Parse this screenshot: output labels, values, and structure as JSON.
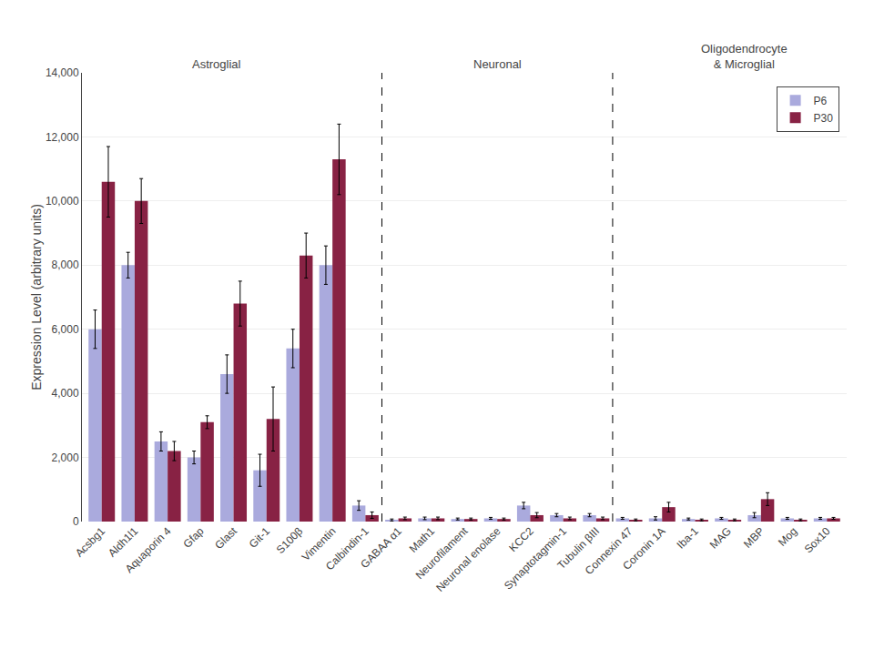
{
  "chart_data": {
    "type": "bar",
    "categories": [
      "Acsbg1",
      "Aldh1l1",
      "Aquaporin 4",
      "Gfap",
      "Glast",
      "Git-1",
      "S100β",
      "Vimentin",
      "Calbindin-1",
      "GABAA α1",
      "Math1",
      "Neurofilament",
      "Neuronal enolase",
      "KCC2",
      "Synaptotagmin-1",
      "Tubulin βIII",
      "Connexin 47",
      "Coronin 1A",
      "Iba-1",
      "MAG",
      "MBP",
      "Mog",
      "Sox10"
    ],
    "series": [
      {
        "name": "P6",
        "color": "#aaaadd",
        "values": [
          6000,
          8000,
          2500,
          2000,
          4600,
          1600,
          5400,
          8000,
          500,
          50,
          100,
          80,
          100,
          500,
          200,
          200,
          100,
          100,
          80,
          100,
          200,
          100,
          100
        ],
        "errors": [
          600,
          400,
          300,
          200,
          600,
          500,
          600,
          600,
          150,
          30,
          40,
          30,
          30,
          100,
          50,
          50,
          30,
          50,
          30,
          30,
          80,
          30,
          30
        ]
      },
      {
        "name": "P30",
        "color": "#882244",
        "values": [
          10600,
          10000,
          2200,
          3100,
          6800,
          3200,
          8300,
          11300,
          200,
          100,
          100,
          80,
          80,
          200,
          100,
          100,
          50,
          450,
          50,
          50,
          700,
          50,
          100
        ],
        "errors": [
          1100,
          700,
          300,
          200,
          700,
          1000,
          700,
          1100,
          100,
          40,
          40,
          30,
          30,
          80,
          40,
          40,
          30,
          150,
          30,
          30,
          200,
          30,
          30
        ]
      }
    ],
    "ylabel": "Expression Level (arbitrary units)",
    "ylim": [
      0,
      14000
    ],
    "yticks": [
      0,
      {
        "value": 2000,
        "label": "2,000"
      },
      {
        "value": 4000,
        "label": "4,000"
      },
      {
        "value": 6000,
        "label": "6,000"
      },
      {
        "value": 8000,
        "label": "8,000"
      },
      {
        "value": 10000,
        "label": "10,000"
      },
      {
        "value": 12000,
        "label": "12,000"
      },
      {
        "value": 14000,
        "label": "14,000"
      }
    ],
    "annotations": [
      {
        "text": "Astroglial",
        "x": 3.5
      },
      {
        "text": "Neuronal",
        "x": 12.0
      },
      {
        "text": "Oligodendrocyte\n& Microglial",
        "x": 19.5
      }
    ],
    "vlines": [
      8.5,
      15.5
    ],
    "grid": true,
    "legend": "upper right"
  }
}
